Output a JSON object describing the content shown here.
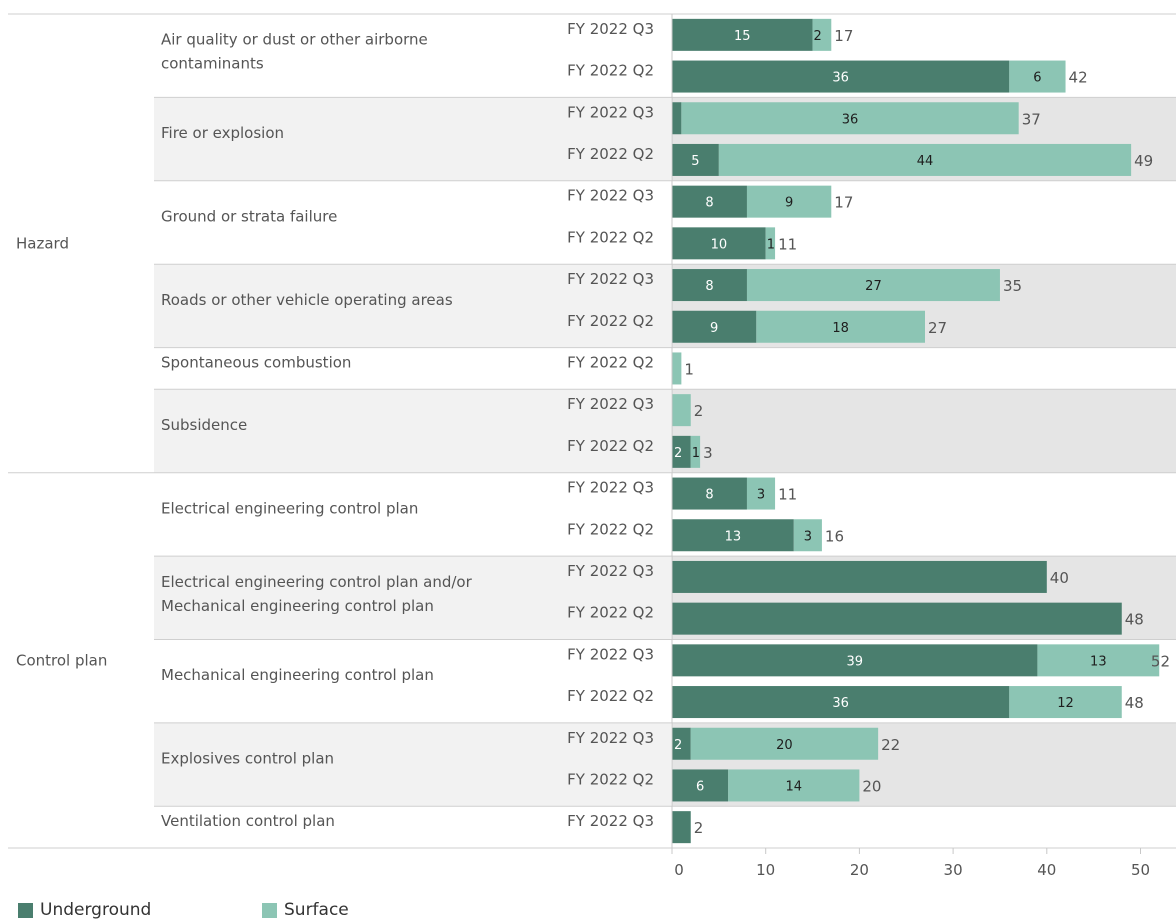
{
  "chart_data": {
    "type": "bar",
    "orientation": "horizontal",
    "stacked": true,
    "xlim": [
      0,
      52
    ],
    "x_ticks": [
      0,
      10,
      20,
      30,
      40,
      50
    ],
    "series": [
      {
        "name": "Underground",
        "color": "#4a7e6e"
      },
      {
        "name": "Surface",
        "color": "#8cc5b4"
      }
    ],
    "groups": [
      {
        "name": "Hazard",
        "categories": [
          {
            "name": [
              "Air quality or dust or other airborne",
              "contaminants"
            ],
            "shaded": false,
            "rows": [
              {
                "period": "FY 2022 Q3",
                "underground": 15,
                "surface": 2,
                "total": 17
              },
              {
                "period": "FY 2022 Q2",
                "underground": 36,
                "surface": 6,
                "total": 42
              }
            ]
          },
          {
            "name": [
              "Fire or explosion"
            ],
            "shaded": true,
            "rows": [
              {
                "period": "FY 2022 Q3",
                "underground": 1,
                "surface": 36,
                "total": 37
              },
              {
                "period": "FY 2022 Q2",
                "underground": 5,
                "surface": 44,
                "total": 49
              }
            ]
          },
          {
            "name": [
              "Ground or strata failure"
            ],
            "shaded": false,
            "rows": [
              {
                "period": "FY 2022 Q3",
                "underground": 8,
                "surface": 9,
                "total": 17
              },
              {
                "period": "FY 2022 Q2",
                "underground": 10,
                "surface": 1,
                "total": 11
              }
            ]
          },
          {
            "name": [
              "Roads or other vehicle operating areas"
            ],
            "shaded": true,
            "rows": [
              {
                "period": "FY 2022 Q3",
                "underground": 8,
                "surface": 27,
                "total": 35
              },
              {
                "period": "FY 2022 Q2",
                "underground": 9,
                "surface": 18,
                "total": 27
              }
            ]
          },
          {
            "name": [
              "Spontaneous combustion"
            ],
            "shaded": false,
            "rows": [
              {
                "period": "FY 2022 Q2",
                "underground": 0,
                "surface": 1,
                "total": 1
              }
            ]
          },
          {
            "name": [
              "Subsidence"
            ],
            "shaded": true,
            "rows": [
              {
                "period": "FY 2022 Q3",
                "underground": 0,
                "surface": 2,
                "total": 2
              },
              {
                "period": "FY 2022 Q2",
                "underground": 2,
                "surface": 1,
                "total": 3
              }
            ]
          }
        ]
      },
      {
        "name": "Control plan",
        "categories": [
          {
            "name": [
              "Electrical engineering control plan"
            ],
            "shaded": false,
            "rows": [
              {
                "period": "FY 2022 Q3",
                "underground": 8,
                "surface": 3,
                "total": 11
              },
              {
                "period": "FY 2022 Q2",
                "underground": 13,
                "surface": 3,
                "total": 16
              }
            ]
          },
          {
            "name": [
              "Electrical engineering control plan and/or",
              "Mechanical engineering control plan"
            ],
            "shaded": true,
            "rows": [
              {
                "period": "FY 2022 Q3",
                "underground": 40,
                "surface": 0,
                "total": 40
              },
              {
                "period": "FY 2022 Q2",
                "underground": 48,
                "surface": 0,
                "total": 48
              }
            ]
          },
          {
            "name": [
              "Mechanical engineering control plan"
            ],
            "shaded": false,
            "rows": [
              {
                "period": "FY 2022 Q3",
                "underground": 39,
                "surface": 13,
                "total": 52
              },
              {
                "period": "FY 2022 Q2",
                "underground": 36,
                "surface": 12,
                "total": 48
              }
            ]
          },
          {
            "name": [
              "Explosives control plan"
            ],
            "shaded": true,
            "rows": [
              {
                "period": "FY 2022 Q3",
                "underground": 2,
                "surface": 20,
                "total": 22
              },
              {
                "period": "FY 2022 Q2",
                "underground": 6,
                "surface": 14,
                "total": 20
              }
            ]
          },
          {
            "name": [
              "Ventilation control plan"
            ],
            "shaded": false,
            "rows": [
              {
                "period": "FY 2022 Q3",
                "underground": 2,
                "surface": 0,
                "total": 2
              }
            ]
          }
        ]
      }
    ]
  },
  "legend": {
    "underground_label": "Underground",
    "surface_label": "Surface"
  }
}
